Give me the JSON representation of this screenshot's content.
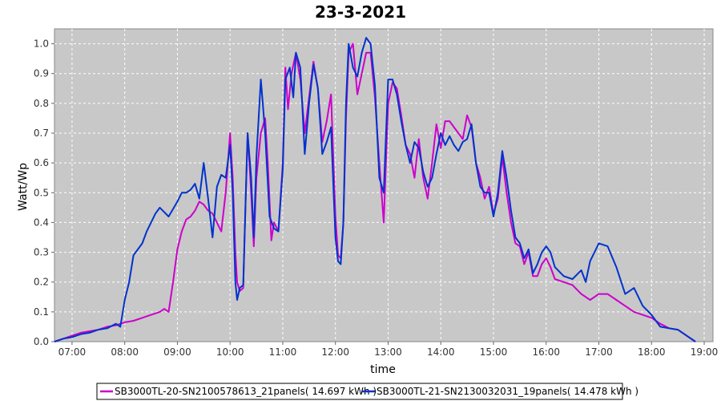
{
  "chart_data": {
    "type": "line",
    "title": "23-3-2021",
    "xlabel": "time",
    "ylabel": "Watt/Wp",
    "xlim": [
      "06:40",
      "19:10"
    ],
    "ylim": [
      0,
      1.05
    ],
    "x_ticks": [
      "07:00",
      "08:00",
      "09:00",
      "10:00",
      "11:00",
      "12:00",
      "13:00",
      "14:00",
      "15:00",
      "16:00",
      "17:00",
      "18:00",
      "19:00"
    ],
    "y_ticks": [
      "0.0",
      "0.1",
      "0.2",
      "0.3",
      "0.4",
      "0.5",
      "0.6",
      "0.7",
      "0.8",
      "0.9",
      "1.0"
    ],
    "grid": true,
    "legend_position": "bottom",
    "background": "#c8c8c8",
    "series": [
      {
        "name": "SB3000TL-20-SN2100578613_21panels( 14.697 kWh )",
        "color": "#cc00cc",
        "points": [
          [
            "06:40",
            0.0
          ],
          [
            "06:50",
            0.01
          ],
          [
            "07:00",
            0.02
          ],
          [
            "07:10",
            0.03
          ],
          [
            "07:20",
            0.035
          ],
          [
            "07:30",
            0.04
          ],
          [
            "07:40",
            0.05
          ],
          [
            "07:50",
            0.055
          ],
          [
            "08:00",
            0.065
          ],
          [
            "08:10",
            0.07
          ],
          [
            "08:20",
            0.08
          ],
          [
            "08:30",
            0.09
          ],
          [
            "08:40",
            0.1
          ],
          [
            "08:45",
            0.11
          ],
          [
            "08:50",
            0.1
          ],
          [
            "08:55",
            0.2
          ],
          [
            "09:00",
            0.31
          ],
          [
            "09:05",
            0.37
          ],
          [
            "09:10",
            0.41
          ],
          [
            "09:15",
            0.42
          ],
          [
            "09:20",
            0.44
          ],
          [
            "09:25",
            0.47
          ],
          [
            "09:30",
            0.46
          ],
          [
            "09:35",
            0.44
          ],
          [
            "09:40",
            0.43
          ],
          [
            "09:45",
            0.4
          ],
          [
            "09:50",
            0.37
          ],
          [
            "09:55",
            0.5
          ],
          [
            "10:00",
            0.7
          ],
          [
            "10:03",
            0.55
          ],
          [
            "10:06",
            0.3
          ],
          [
            "10:08",
            0.2
          ],
          [
            "10:11",
            0.17
          ],
          [
            "10:15",
            0.18
          ],
          [
            "10:17",
            0.4
          ],
          [
            "10:20",
            0.7
          ],
          [
            "10:24",
            0.5
          ],
          [
            "10:27",
            0.32
          ],
          [
            "10:30",
            0.55
          ],
          [
            "10:35",
            0.7
          ],
          [
            "10:40",
            0.75
          ],
          [
            "10:43",
            0.6
          ],
          [
            "10:47",
            0.34
          ],
          [
            "10:50",
            0.4
          ],
          [
            "10:55",
            0.37
          ],
          [
            "11:00",
            0.6
          ],
          [
            "11:03",
            0.92
          ],
          [
            "11:06",
            0.78
          ],
          [
            "11:10",
            0.9
          ],
          [
            "11:15",
            0.97
          ],
          [
            "11:20",
            0.88
          ],
          [
            "11:25",
            0.7
          ],
          [
            "11:30",
            0.82
          ],
          [
            "11:35",
            0.94
          ],
          [
            "11:40",
            0.85
          ],
          [
            "11:45",
            0.67
          ],
          [
            "11:50",
            0.74
          ],
          [
            "11:55",
            0.83
          ],
          [
            "12:00",
            0.42
          ],
          [
            "12:03",
            0.29
          ],
          [
            "12:06",
            0.28
          ],
          [
            "12:09",
            0.4
          ],
          [
            "12:12",
            0.75
          ],
          [
            "12:15",
            0.97
          ],
          [
            "12:20",
            1.0
          ],
          [
            "12:25",
            0.83
          ],
          [
            "12:30",
            0.9
          ],
          [
            "12:35",
            0.97
          ],
          [
            "12:40",
            0.97
          ],
          [
            "12:45",
            0.82
          ],
          [
            "12:50",
            0.6
          ],
          [
            "12:55",
            0.4
          ],
          [
            "13:00",
            0.8
          ],
          [
            "13:05",
            0.87
          ],
          [
            "13:10",
            0.85
          ],
          [
            "13:15",
            0.76
          ],
          [
            "13:20",
            0.66
          ],
          [
            "13:25",
            0.63
          ],
          [
            "13:30",
            0.55
          ],
          [
            "13:35",
            0.68
          ],
          [
            "13:40",
            0.55
          ],
          [
            "13:45",
            0.48
          ],
          [
            "13:50",
            0.6
          ],
          [
            "13:55",
            0.73
          ],
          [
            "14:00",
            0.65
          ],
          [
            "14:05",
            0.74
          ],
          [
            "14:10",
            0.74
          ],
          [
            "14:15",
            0.72
          ],
          [
            "14:20",
            0.7
          ],
          [
            "14:25",
            0.68
          ],
          [
            "14:30",
            0.76
          ],
          [
            "14:35",
            0.72
          ],
          [
            "14:40",
            0.6
          ],
          [
            "14:45",
            0.55
          ],
          [
            "14:50",
            0.48
          ],
          [
            "14:55",
            0.52
          ],
          [
            "15:00",
            0.43
          ],
          [
            "15:05",
            0.48
          ],
          [
            "15:10",
            0.62
          ],
          [
            "15:15",
            0.5
          ],
          [
            "15:20",
            0.4
          ],
          [
            "15:25",
            0.33
          ],
          [
            "15:30",
            0.32
          ],
          [
            "15:35",
            0.26
          ],
          [
            "15:40",
            0.3
          ],
          [
            "15:45",
            0.22
          ],
          [
            "15:50",
            0.22
          ],
          [
            "15:55",
            0.26
          ],
          [
            "16:00",
            0.28
          ],
          [
            "16:05",
            0.25
          ],
          [
            "16:10",
            0.21
          ],
          [
            "16:20",
            0.2
          ],
          [
            "16:30",
            0.19
          ],
          [
            "16:40",
            0.16
          ],
          [
            "16:50",
            0.14
          ],
          [
            "17:00",
            0.16
          ],
          [
            "17:10",
            0.16
          ],
          [
            "17:20",
            0.14
          ],
          [
            "17:30",
            0.12
          ],
          [
            "17:40",
            0.1
          ],
          [
            "17:50",
            0.09
          ],
          [
            "18:00",
            0.08
          ],
          [
            "18:10",
            0.06
          ],
          [
            "18:20",
            0.045
          ],
          [
            "18:30",
            0.04
          ],
          [
            "18:40",
            0.02
          ],
          [
            "18:50",
            0.0
          ]
        ]
      },
      {
        "name": "SB3000TL-21-SN2130032031_19panels( 14.478 kWh )",
        "color": "#0033cc",
        "points": [
          [
            "06:40",
            0.0
          ],
          [
            "06:50",
            0.01
          ],
          [
            "07:00",
            0.015
          ],
          [
            "07:10",
            0.025
          ],
          [
            "07:20",
            0.03
          ],
          [
            "07:30",
            0.04
          ],
          [
            "07:40",
            0.045
          ],
          [
            "07:50",
            0.06
          ],
          [
            "07:55",
            0.05
          ],
          [
            "08:00",
            0.14
          ],
          [
            "08:05",
            0.2
          ],
          [
            "08:10",
            0.29
          ],
          [
            "08:15",
            0.31
          ],
          [
            "08:20",
            0.33
          ],
          [
            "08:25",
            0.37
          ],
          [
            "08:30",
            0.4
          ],
          [
            "08:35",
            0.43
          ],
          [
            "08:40",
            0.45
          ],
          [
            "08:50",
            0.42
          ],
          [
            "09:00",
            0.47
          ],
          [
            "09:05",
            0.5
          ],
          [
            "09:10",
            0.5
          ],
          [
            "09:15",
            0.51
          ],
          [
            "09:20",
            0.53
          ],
          [
            "09:25",
            0.48
          ],
          [
            "09:30",
            0.6
          ],
          [
            "09:35",
            0.48
          ],
          [
            "09:40",
            0.35
          ],
          [
            "09:45",
            0.52
          ],
          [
            "09:50",
            0.56
          ],
          [
            "09:55",
            0.55
          ],
          [
            "10:00",
            0.66
          ],
          [
            "10:03",
            0.5
          ],
          [
            "10:06",
            0.2
          ],
          [
            "10:08",
            0.14
          ],
          [
            "10:11",
            0.18
          ],
          [
            "10:15",
            0.19
          ],
          [
            "10:18",
            0.5
          ],
          [
            "10:20",
            0.7
          ],
          [
            "10:24",
            0.55
          ],
          [
            "10:27",
            0.35
          ],
          [
            "10:30",
            0.62
          ],
          [
            "10:35",
            0.88
          ],
          [
            "10:40",
            0.7
          ],
          [
            "10:45",
            0.42
          ],
          [
            "10:50",
            0.38
          ],
          [
            "10:55",
            0.37
          ],
          [
            "11:00",
            0.58
          ],
          [
            "11:03",
            0.88
          ],
          [
            "11:08",
            0.92
          ],
          [
            "11:12",
            0.82
          ],
          [
            "11:15",
            0.97
          ],
          [
            "11:20",
            0.92
          ],
          [
            "11:25",
            0.63
          ],
          [
            "11:30",
            0.8
          ],
          [
            "11:35",
            0.93
          ],
          [
            "11:40",
            0.85
          ],
          [
            "11:45",
            0.63
          ],
          [
            "11:50",
            0.67
          ],
          [
            "11:55",
            0.72
          ],
          [
            "12:00",
            0.35
          ],
          [
            "12:03",
            0.27
          ],
          [
            "12:06",
            0.26
          ],
          [
            "12:09",
            0.4
          ],
          [
            "12:12",
            0.8
          ],
          [
            "12:15",
            1.0
          ],
          [
            "12:20",
            0.92
          ],
          [
            "12:25",
            0.89
          ],
          [
            "12:30",
            0.97
          ],
          [
            "12:35",
            1.02
          ],
          [
            "12:40",
            1.0
          ],
          [
            "12:45",
            0.86
          ],
          [
            "12:50",
            0.55
          ],
          [
            "12:55",
            0.5
          ],
          [
            "13:00",
            0.88
          ],
          [
            "13:05",
            0.88
          ],
          [
            "13:10",
            0.83
          ],
          [
            "13:15",
            0.74
          ],
          [
            "13:20",
            0.66
          ],
          [
            "13:25",
            0.6
          ],
          [
            "13:30",
            0.67
          ],
          [
            "13:35",
            0.65
          ],
          [
            "13:40",
            0.57
          ],
          [
            "13:45",
            0.52
          ],
          [
            "13:50",
            0.55
          ],
          [
            "13:55",
            0.63
          ],
          [
            "14:00",
            0.7
          ],
          [
            "14:05",
            0.66
          ],
          [
            "14:10",
            0.69
          ],
          [
            "14:15",
            0.66
          ],
          [
            "14:20",
            0.64
          ],
          [
            "14:25",
            0.67
          ],
          [
            "14:30",
            0.68
          ],
          [
            "14:35",
            0.73
          ],
          [
            "14:40",
            0.6
          ],
          [
            "14:45",
            0.52
          ],
          [
            "14:50",
            0.5
          ],
          [
            "14:55",
            0.5
          ],
          [
            "15:00",
            0.42
          ],
          [
            "15:05",
            0.5
          ],
          [
            "15:10",
            0.64
          ],
          [
            "15:15",
            0.55
          ],
          [
            "15:20",
            0.44
          ],
          [
            "15:25",
            0.35
          ],
          [
            "15:30",
            0.33
          ],
          [
            "15:35",
            0.28
          ],
          [
            "15:40",
            0.31
          ],
          [
            "15:45",
            0.23
          ],
          [
            "15:50",
            0.26
          ],
          [
            "15:55",
            0.3
          ],
          [
            "16:00",
            0.32
          ],
          [
            "16:05",
            0.3
          ],
          [
            "16:10",
            0.25
          ],
          [
            "16:20",
            0.22
          ],
          [
            "16:30",
            0.21
          ],
          [
            "16:40",
            0.24
          ],
          [
            "16:45",
            0.2
          ],
          [
            "16:50",
            0.27
          ],
          [
            "17:00",
            0.33
          ],
          [
            "17:10",
            0.32
          ],
          [
            "17:20",
            0.25
          ],
          [
            "17:30",
            0.16
          ],
          [
            "17:40",
            0.18
          ],
          [
            "17:50",
            0.12
          ],
          [
            "18:00",
            0.09
          ],
          [
            "18:10",
            0.05
          ],
          [
            "18:20",
            0.045
          ],
          [
            "18:30",
            0.04
          ],
          [
            "18:40",
            0.02
          ],
          [
            "18:50",
            0.0
          ]
        ]
      }
    ]
  }
}
